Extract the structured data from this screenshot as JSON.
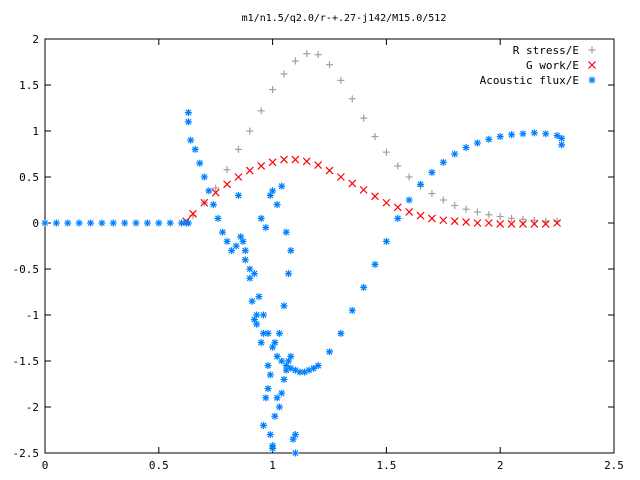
{
  "chart_data": {
    "type": "scatter",
    "title": "m1/n1.5/q2.0/r-+.27-j142/M15.0/512",
    "xlabel": "",
    "ylabel": "",
    "xlim": [
      0,
      2.5
    ],
    "ylim": [
      -2.5,
      2
    ],
    "xticks": [
      "0",
      "0.5",
      "1",
      "1.5",
      "2",
      "2.5"
    ],
    "yticks": [
      "2",
      "1.5",
      "1",
      "0.5",
      "0",
      "-0.5",
      "-1",
      "-1.5",
      "-2",
      "-2.5"
    ],
    "grid": false,
    "legend_position": "top-right",
    "series": [
      {
        "name": "R stress/E",
        "marker": "+",
        "color": "#a0a0a0",
        "x": [
          0.62,
          0.65,
          0.7,
          0.75,
          0.8,
          0.85,
          0.9,
          0.95,
          1.0,
          1.05,
          1.1,
          1.15,
          1.2,
          1.25,
          1.3,
          1.35,
          1.4,
          1.45,
          1.5,
          1.55,
          1.6,
          1.65,
          1.7,
          1.75,
          1.8,
          1.85,
          1.9,
          1.95,
          2.0,
          2.05,
          2.1,
          2.15,
          2.2,
          2.25
        ],
        "y": [
          0.0,
          0.08,
          0.22,
          0.38,
          0.58,
          0.8,
          1.0,
          1.22,
          1.45,
          1.62,
          1.76,
          1.84,
          1.83,
          1.72,
          1.55,
          1.35,
          1.14,
          0.94,
          0.77,
          0.62,
          0.5,
          0.4,
          0.32,
          0.25,
          0.19,
          0.15,
          0.12,
          0.09,
          0.07,
          0.05,
          0.04,
          0.03,
          0.02,
          0.02
        ]
      },
      {
        "name": "G work/E",
        "marker": "x",
        "color": "#ff0000",
        "x": [
          0.62,
          0.65,
          0.7,
          0.75,
          0.8,
          0.85,
          0.9,
          0.95,
          1.0,
          1.05,
          1.1,
          1.15,
          1.2,
          1.25,
          1.3,
          1.35,
          1.4,
          1.45,
          1.5,
          1.55,
          1.6,
          1.65,
          1.7,
          1.75,
          1.8,
          1.85,
          1.9,
          1.95,
          2.0,
          2.05,
          2.1,
          2.15,
          2.2,
          2.25
        ],
        "y": [
          0.02,
          0.1,
          0.22,
          0.33,
          0.42,
          0.5,
          0.57,
          0.62,
          0.66,
          0.69,
          0.69,
          0.67,
          0.63,
          0.57,
          0.5,
          0.43,
          0.36,
          0.29,
          0.22,
          0.17,
          0.12,
          0.08,
          0.05,
          0.03,
          0.02,
          0.01,
          0.0,
          0.0,
          -0.01,
          -0.01,
          -0.01,
          -0.01,
          -0.01,
          0.0
        ]
      },
      {
        "name": "Acoustic flux/E",
        "marker": "*",
        "color": "#0080ff",
        "x": [
          0.0,
          0.05,
          0.1,
          0.15,
          0.2,
          0.25,
          0.3,
          0.35,
          0.4,
          0.45,
          0.5,
          0.55,
          0.6,
          0.62,
          0.63,
          0.64,
          0.66,
          0.68,
          0.7,
          0.72,
          0.74,
          0.76,
          0.78,
          0.8,
          0.82,
          0.84,
          0.86,
          0.88,
          0.9,
          0.92,
          0.94,
          0.96,
          0.98,
          1.0,
          1.02,
          1.04,
          1.06,
          1.08,
          1.1,
          1.12,
          1.14,
          1.16,
          1.18,
          1.2,
          1.25,
          1.3,
          1.35,
          1.4,
          1.45,
          1.5,
          1.55,
          1.6,
          1.65,
          1.7,
          1.75,
          1.8,
          1.85,
          1.9,
          1.95,
          2.0,
          2.05,
          2.1,
          2.15,
          2.2,
          2.25,
          2.27,
          2.27,
          0.63,
          0.63,
          0.85,
          0.87,
          0.88,
          0.9,
          0.91,
          0.92,
          0.93,
          0.95,
          0.96,
          0.98,
          0.98,
          0.99,
          1.0,
          1.0,
          1.01,
          1.02,
          1.03,
          1.04,
          1.05,
          1.06,
          1.07,
          1.08,
          1.09,
          1.1,
          1.1,
          0.95,
          0.97,
          0.99,
          1.0,
          1.02,
          1.04,
          1.06,
          1.08,
          1.07,
          1.05,
          1.03,
          1.01,
          0.99,
          0.97,
          0.96,
          0.93
        ],
        "y": [
          0.0,
          0.0,
          0.0,
          0.0,
          0.0,
          0.0,
          0.0,
          0.0,
          0.0,
          0.0,
          0.0,
          0.0,
          0.0,
          0.0,
          0.0,
          0.9,
          0.8,
          0.65,
          0.5,
          0.35,
          0.2,
          0.05,
          -0.1,
          -0.2,
          -0.3,
          -0.25,
          -0.15,
          -0.3,
          -0.5,
          -0.55,
          -0.8,
          -1.0,
          -1.2,
          -1.35,
          -1.45,
          -1.5,
          -1.55,
          -1.58,
          -1.6,
          -1.62,
          -1.62,
          -1.6,
          -1.58,
          -1.55,
          -1.4,
          -1.2,
          -0.95,
          -0.7,
          -0.45,
          -0.2,
          0.05,
          0.25,
          0.42,
          0.55,
          0.66,
          0.75,
          0.82,
          0.87,
          0.91,
          0.94,
          0.96,
          0.97,
          0.98,
          0.97,
          0.95,
          0.92,
          0.85,
          1.2,
          1.1,
          0.3,
          -0.2,
          -0.4,
          -0.6,
          -0.85,
          -1.05,
          -1.1,
          -1.3,
          -1.2,
          -1.8,
          -1.55,
          -2.3,
          -2.45,
          -2.42,
          -2.1,
          -1.9,
          -2.0,
          -1.85,
          -1.7,
          -1.6,
          -1.5,
          -1.45,
          -2.35,
          -2.3,
          -2.5,
          0.05,
          -0.05,
          0.3,
          0.35,
          0.2,
          0.4,
          -0.1,
          -0.3,
          -0.55,
          -0.9,
          -1.2,
          -1.3,
          -1.65,
          -1.9,
          -2.2,
          -1.0
        ]
      }
    ]
  }
}
